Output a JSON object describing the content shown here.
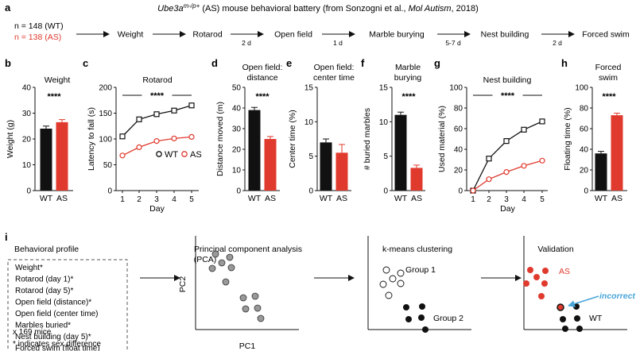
{
  "colors": {
    "wt": "#111111",
    "as": "#e03a2e",
    "pca_dot": "#999999",
    "incorrect": "#4aa6d8"
  },
  "panel_a": {
    "letter": "a",
    "title_gene": "Ube3a",
    "title_sup": "m-/p+",
    "title_rest": " (AS) mouse behavioral battery (from Sonzogni et al., ",
    "title_journal": "Mol Autism",
    "title_end": ", 2018)",
    "n_wt": "n = 148 (WT)",
    "n_as": "n = 138 (AS)",
    "steps": [
      "Weight",
      "Rotarod",
      "Open field",
      "Marble burying",
      "Nest building",
      "Forced swim"
    ],
    "intervals": [
      "2 d",
      "1 d",
      "5-7 d",
      "2 d"
    ]
  },
  "chart_data": [
    {
      "id": "b",
      "type": "bar",
      "title": "Weight",
      "ylabel": "Weight (g)",
      "categories": [
        "WT",
        "AS"
      ],
      "values": [
        24,
        26.5
      ],
      "errors": [
        1,
        1
      ],
      "ylim": [
        0,
        40
      ],
      "yticks": [
        "0",
        "10",
        "20",
        "30",
        "40"
      ],
      "significance": "****"
    },
    {
      "id": "c",
      "type": "line",
      "title": "Rotarod",
      "xlabel": "Day",
      "ylabel": "Latency to fall (s)",
      "x": [
        1,
        2,
        3,
        4,
        5
      ],
      "xticks": [
        "1",
        "2",
        "3",
        "4",
        "5"
      ],
      "ylim": [
        0,
        200
      ],
      "yticks": [
        "0",
        "50",
        "100",
        "150",
        "200"
      ],
      "series": [
        {
          "name": "WT",
          "values": [
            105,
            138,
            148,
            155,
            165
          ]
        },
        {
          "name": "AS",
          "values": [
            68,
            84,
            96,
            101,
            104
          ]
        }
      ],
      "significance": "****"
    },
    {
      "id": "d",
      "type": "bar",
      "title": "Open field: distance",
      "title_lines": [
        "Open field:",
        "distance"
      ],
      "ylabel": "Distance moved (m)",
      "categories": [
        "WT",
        "AS"
      ],
      "values": [
        39,
        25
      ],
      "errors": [
        1.3,
        1.2
      ],
      "ylim": [
        0,
        50
      ],
      "yticks": [
        "0",
        "10",
        "20",
        "30",
        "40",
        "50"
      ],
      "significance": "****"
    },
    {
      "id": "e",
      "type": "bar",
      "title": "Open field: center time",
      "title_lines": [
        "Open field:",
        "center time"
      ],
      "ylabel": "Center time (%)",
      "categories": [
        "WT",
        "AS"
      ],
      "values": [
        7,
        5.5
      ],
      "errors": [
        0.5,
        1.2
      ],
      "ylim": [
        0,
        15
      ],
      "yticks": [
        "0",
        "5",
        "10",
        "15"
      ]
    },
    {
      "id": "f",
      "type": "bar",
      "title": "Marble burying",
      "title_lines": [
        "Marble",
        "burying"
      ],
      "ylabel": "# buried marbles",
      "categories": [
        "WT",
        "AS"
      ],
      "values": [
        11,
        3.3
      ],
      "errors": [
        0.4,
        0.4
      ],
      "ylim": [
        0,
        15
      ],
      "yticks": [
        "0",
        "5",
        "10",
        "15"
      ],
      "significance": "****"
    },
    {
      "id": "g",
      "type": "line",
      "title": "Nest building",
      "xlabel": "Day",
      "ylabel": "Used material (%)",
      "x": [
        1,
        2,
        3,
        4,
        5
      ],
      "xticks": [
        "1",
        "2",
        "3",
        "4",
        "5"
      ],
      "ylim": [
        0,
        100
      ],
      "yticks": [
        "0",
        "20",
        "40",
        "60",
        "80",
        "100"
      ],
      "series": [
        {
          "name": "WT",
          "values": [
            0,
            31,
            48,
            59,
            67
          ]
        },
        {
          "name": "AS",
          "values": [
            0,
            11,
            18,
            24,
            29
          ]
        }
      ],
      "significance": "****"
    },
    {
      "id": "h",
      "type": "bar",
      "title": "Forced swim",
      "title_lines": [
        "Forced",
        "swim"
      ],
      "ylabel": "Floating time (%)",
      "categories": [
        "WT",
        "AS"
      ],
      "values": [
        36,
        73
      ],
      "errors": [
        2,
        2
      ],
      "ylim": [
        0,
        100
      ],
      "yticks": [
        "0",
        "20",
        "40",
        "60",
        "80",
        "100"
      ],
      "significance": "****"
    }
  ],
  "panel_i": {
    "letter": "i",
    "profile_title": "Behavioral profile",
    "profile_items": [
      "Weight*",
      "Rotarod (day 1)*",
      "Rotarod (day 5)*",
      "Open field (distance)*",
      "Open field (center time)",
      "Marbles buried*",
      "Nest building (day 5)*",
      "Forced swim (float time)"
    ],
    "n_mice": "x 169 mice",
    "footnote": "* indicates sex difference",
    "pca_title": "Principal component analysis",
    "pca_sub": "(PCA)",
    "pc1": "PC1",
    "pc2": "PC2",
    "kmeans_title": "k-means clustering",
    "group1": "Group 1",
    "group2": "Group 2",
    "validation_title": "Validation",
    "as_label": "AS",
    "wt_label": "WT",
    "incorrect": "incorrect"
  }
}
